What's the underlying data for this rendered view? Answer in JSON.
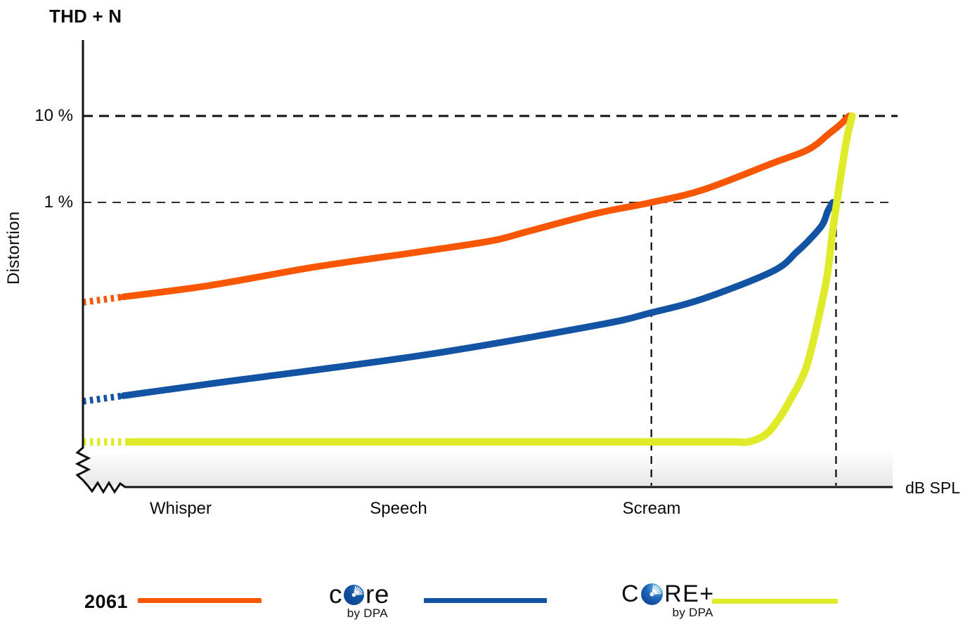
{
  "title": "THD + N",
  "y_axis": {
    "label": "Distortion",
    "ticks": [
      "10 %",
      "1 %"
    ]
  },
  "x_axis": {
    "label": "dB SPL",
    "categories": [
      "Whisper",
      "Speech",
      "Scream"
    ]
  },
  "legend": {
    "items": [
      {
        "id": "2061",
        "label": "2061",
        "color": "#F95602"
      },
      {
        "id": "core",
        "logo_prefix": "c",
        "logo_suffix": "re",
        "sub": "by DPA",
        "color": "#1253A4"
      },
      {
        "id": "core-plus",
        "logo_prefix": "C",
        "logo_suffix": "RE+",
        "sub": "by DPA",
        "color": "#DFEB28"
      }
    ]
  },
  "chart_data": {
    "type": "line",
    "title": "THD + N",
    "ylabel": "Distortion",
    "xlabel": "dB SPL",
    "y_scale": "log",
    "y_tick_percent": [
      10,
      1
    ],
    "x_scale": "unlabeled dB SPL, normalized 0-1 across axis",
    "x_categories": [
      {
        "label": "Whisper",
        "x": 0.12
      },
      {
        "label": "Speech",
        "x": 0.39
      },
      {
        "label": "Scream",
        "x": 0.7
      }
    ],
    "guides": {
      "horizontal_percent": [
        10,
        1
      ],
      "vertical": [
        {
          "x": 0.702,
          "note": "2061 curve reaches 1 % distortion at Scream level"
        },
        {
          "x": 0.93,
          "note": "CORE curve reaches 1 % distortion"
        }
      ]
    },
    "series": [
      {
        "name": "2061",
        "color": "#F95602",
        "stroke_width": 9.5,
        "dotted_until_x": 0.05,
        "points_x_percent": [
          [
            0.0,
            0.07
          ],
          [
            0.158,
            0.11
          ],
          [
            0.288,
            0.18
          ],
          [
            0.418,
            0.27
          ],
          [
            0.505,
            0.36
          ],
          [
            0.549,
            0.46
          ],
          [
            0.635,
            0.75
          ],
          [
            0.702,
            1.0
          ],
          [
            0.766,
            1.4
          ],
          [
            0.852,
            2.85
          ],
          [
            0.896,
            4.1
          ],
          [
            0.922,
            6.3
          ],
          [
            0.935,
            7.9
          ],
          [
            0.946,
            10.0
          ]
        ]
      },
      {
        "name": "CORE by DPA",
        "color": "#1253A4",
        "stroke_width": 9.5,
        "dotted_until_x": 0.05,
        "points_x_percent": [
          [
            0.0,
            0.005
          ],
          [
            0.158,
            0.008
          ],
          [
            0.418,
            0.017
          ],
          [
            0.635,
            0.038
          ],
          [
            0.702,
            0.053
          ],
          [
            0.766,
            0.077
          ],
          [
            0.852,
            0.16
          ],
          [
            0.882,
            0.27
          ],
          [
            0.896,
            0.36
          ],
          [
            0.913,
            0.55
          ],
          [
            0.92,
            0.8
          ],
          [
            0.926,
            1.0
          ]
        ]
      },
      {
        "name": "CORE+ by DPA",
        "color": "#DFEB28",
        "stroke_width": 10.5,
        "dotted_until_x": 0.058,
        "points_x_percent": [
          [
            0.0,
            0.0017
          ],
          [
            0.25,
            0.0017
          ],
          [
            0.5,
            0.0017
          ],
          [
            0.7,
            0.0017
          ],
          [
            0.8,
            0.0017
          ],
          [
            0.822,
            0.0017
          ],
          [
            0.844,
            0.0021
          ],
          [
            0.861,
            0.0033
          ],
          [
            0.874,
            0.0053
          ],
          [
            0.887,
            0.0089
          ],
          [
            0.896,
            0.015
          ],
          [
            0.907,
            0.04
          ],
          [
            0.919,
            0.14
          ],
          [
            0.926,
            0.48
          ],
          [
            0.931,
            1.0
          ],
          [
            0.94,
            3.6
          ],
          [
            0.945,
            6.5
          ],
          [
            0.95,
            10.0
          ]
        ]
      }
    ]
  }
}
